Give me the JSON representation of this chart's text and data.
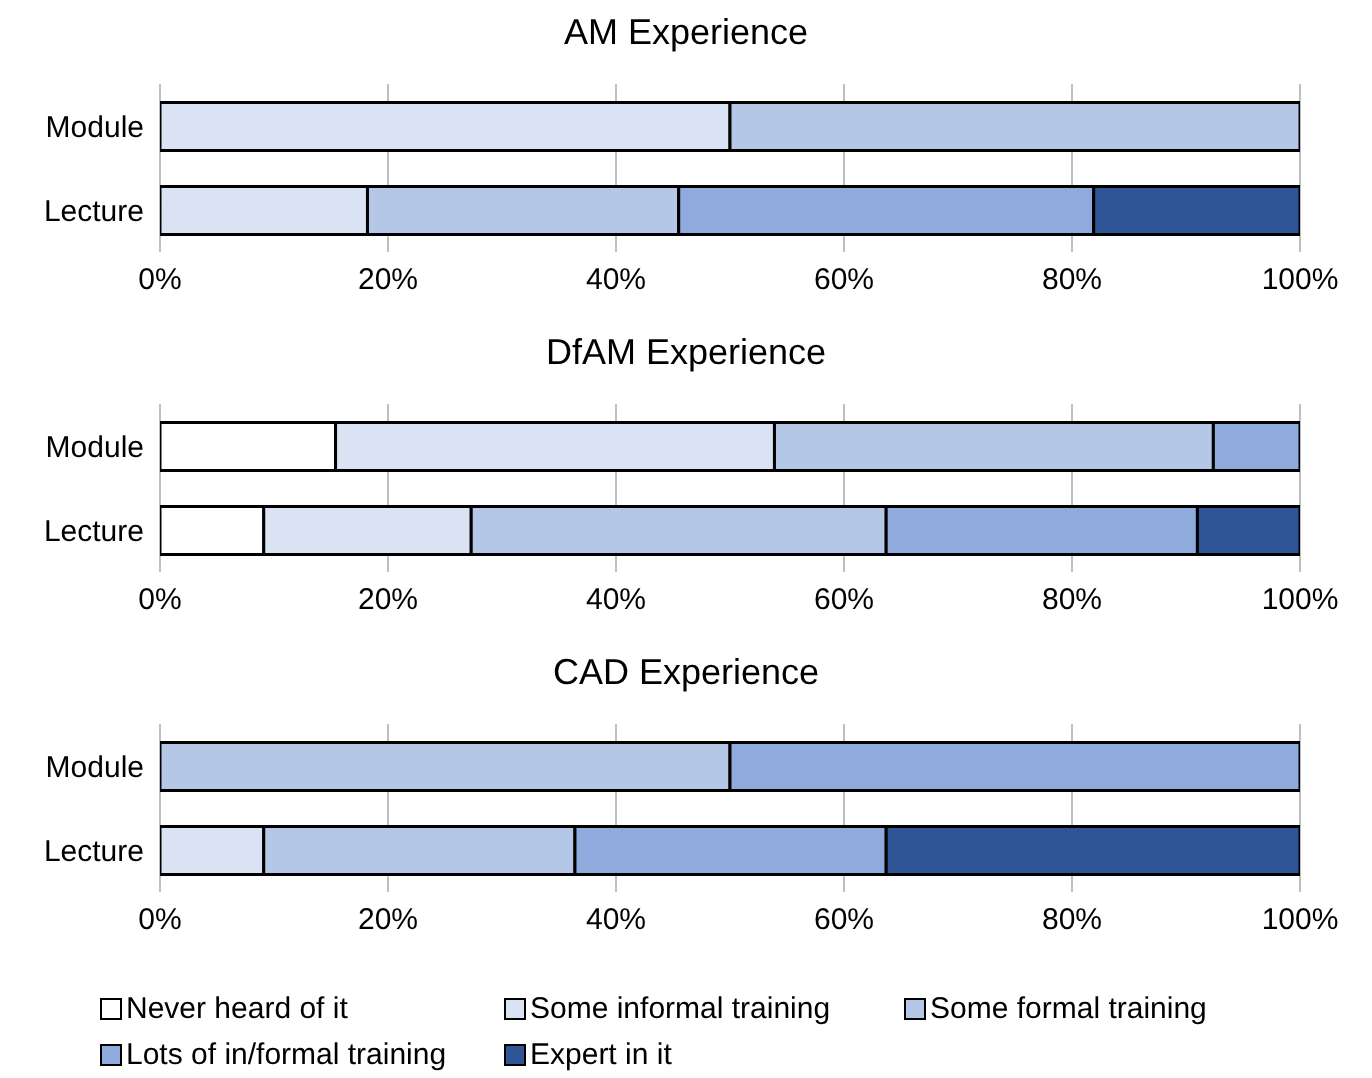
{
  "chart_data": [
    {
      "type": "bar",
      "orientation": "horizontal",
      "stacked": true,
      "title": "AM Experience",
      "categories": [
        "Module",
        "Lecture"
      ],
      "xlim": [
        0,
        100
      ],
      "xticks": [
        {
          "value": 0,
          "label": "0%"
        },
        {
          "value": 20,
          "label": "20%"
        },
        {
          "value": 40,
          "label": "40%"
        },
        {
          "value": 60,
          "label": "60%"
        },
        {
          "value": 80,
          "label": "80%"
        },
        {
          "value": 100,
          "label": "100%"
        }
      ],
      "grid": "x",
      "legend": false,
      "series": [
        {
          "color": "#ffffff",
          "values": [
            null,
            null
          ]
        },
        {
          "color": "#dae3f3",
          "values": [
            50,
            18.2
          ]
        },
        {
          "color": "#b4c7e7",
          "values": [
            50,
            27.3
          ]
        },
        {
          "color": "#8faadc",
          "values": [
            null,
            36.4
          ]
        },
        {
          "color": "#2f5597",
          "values": [
            null,
            18.2
          ]
        }
      ]
    },
    {
      "type": "bar",
      "orientation": "horizontal",
      "stacked": true,
      "title": "DfAM Experience",
      "categories": [
        "Module",
        "Lecture"
      ],
      "xlim": [
        0,
        100
      ],
      "xticks": [
        {
          "value": 0,
          "label": "0%"
        },
        {
          "value": 20,
          "label": "20%"
        },
        {
          "value": 40,
          "label": "40%"
        },
        {
          "value": 60,
          "label": "60%"
        },
        {
          "value": 80,
          "label": "80%"
        },
        {
          "value": 100,
          "label": "100%"
        }
      ],
      "grid": "x",
      "legend": false,
      "series": [
        {
          "color": "#ffffff",
          "values": [
            15.4,
            9.1
          ]
        },
        {
          "color": "#dae3f3",
          "values": [
            38.5,
            18.2
          ]
        },
        {
          "color": "#b4c7e7",
          "values": [
            38.5,
            36.4
          ]
        },
        {
          "color": "#8faadc",
          "values": [
            7.7,
            27.3
          ]
        },
        {
          "color": "#2f5597",
          "values": [
            null,
            9.1
          ]
        }
      ]
    },
    {
      "type": "bar",
      "orientation": "horizontal",
      "stacked": true,
      "title": "CAD Experience",
      "categories": [
        "Module",
        "Lecture"
      ],
      "xlim": [
        0,
        100
      ],
      "xticks": [
        {
          "value": 0,
          "label": "0%"
        },
        {
          "value": 20,
          "label": "20%"
        },
        {
          "value": 40,
          "label": "40%"
        },
        {
          "value": 60,
          "label": "60%"
        },
        {
          "value": 80,
          "label": "80%"
        },
        {
          "value": 100,
          "label": "100%"
        }
      ],
      "grid": "x",
      "legend": "bottom",
      "series": [
        {
          "name": "Never heard of it",
          "color": "#ffffff",
          "values": [
            null,
            null
          ]
        },
        {
          "name": "Some informal training",
          "color": "#dae3f3",
          "values": [
            null,
            9.1
          ]
        },
        {
          "name": "Some formal training",
          "color": "#b4c7e7",
          "values": [
            50,
            27.3
          ]
        },
        {
          "name": "Lots of in/formal training",
          "color": "#8faadc",
          "values": [
            50,
            27.3
          ]
        },
        {
          "name": "Expert in it",
          "color": "#2f5597",
          "values": [
            null,
            36.4
          ]
        }
      ]
    }
  ]
}
